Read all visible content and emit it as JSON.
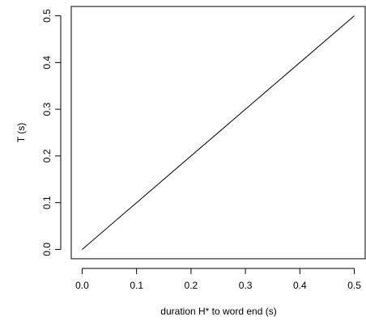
{
  "chart_data": {
    "type": "line",
    "xlabel": "duration H* to word end (s)",
    "ylabel": "T (s)",
    "xlim": [
      -0.02,
      0.52
    ],
    "ylim": [
      -0.02,
      0.52
    ],
    "xticks": [
      0.0,
      0.1,
      0.2,
      0.3,
      0.4,
      0.5
    ],
    "yticks": [
      0.0,
      0.1,
      0.2,
      0.3,
      0.4,
      0.5
    ],
    "xtick_labels": [
      "0.0",
      "0.1",
      "0.2",
      "0.3",
      "0.4",
      "0.5"
    ],
    "ytick_labels": [
      "0.0",
      "0.1",
      "0.2",
      "0.3",
      "0.4",
      "0.5"
    ],
    "grid": false,
    "legend": "none",
    "series": [
      {
        "x": [
          0.0,
          0.5
        ],
        "y": [
          0.0,
          0.5
        ],
        "color": "#000000"
      }
    ]
  }
}
